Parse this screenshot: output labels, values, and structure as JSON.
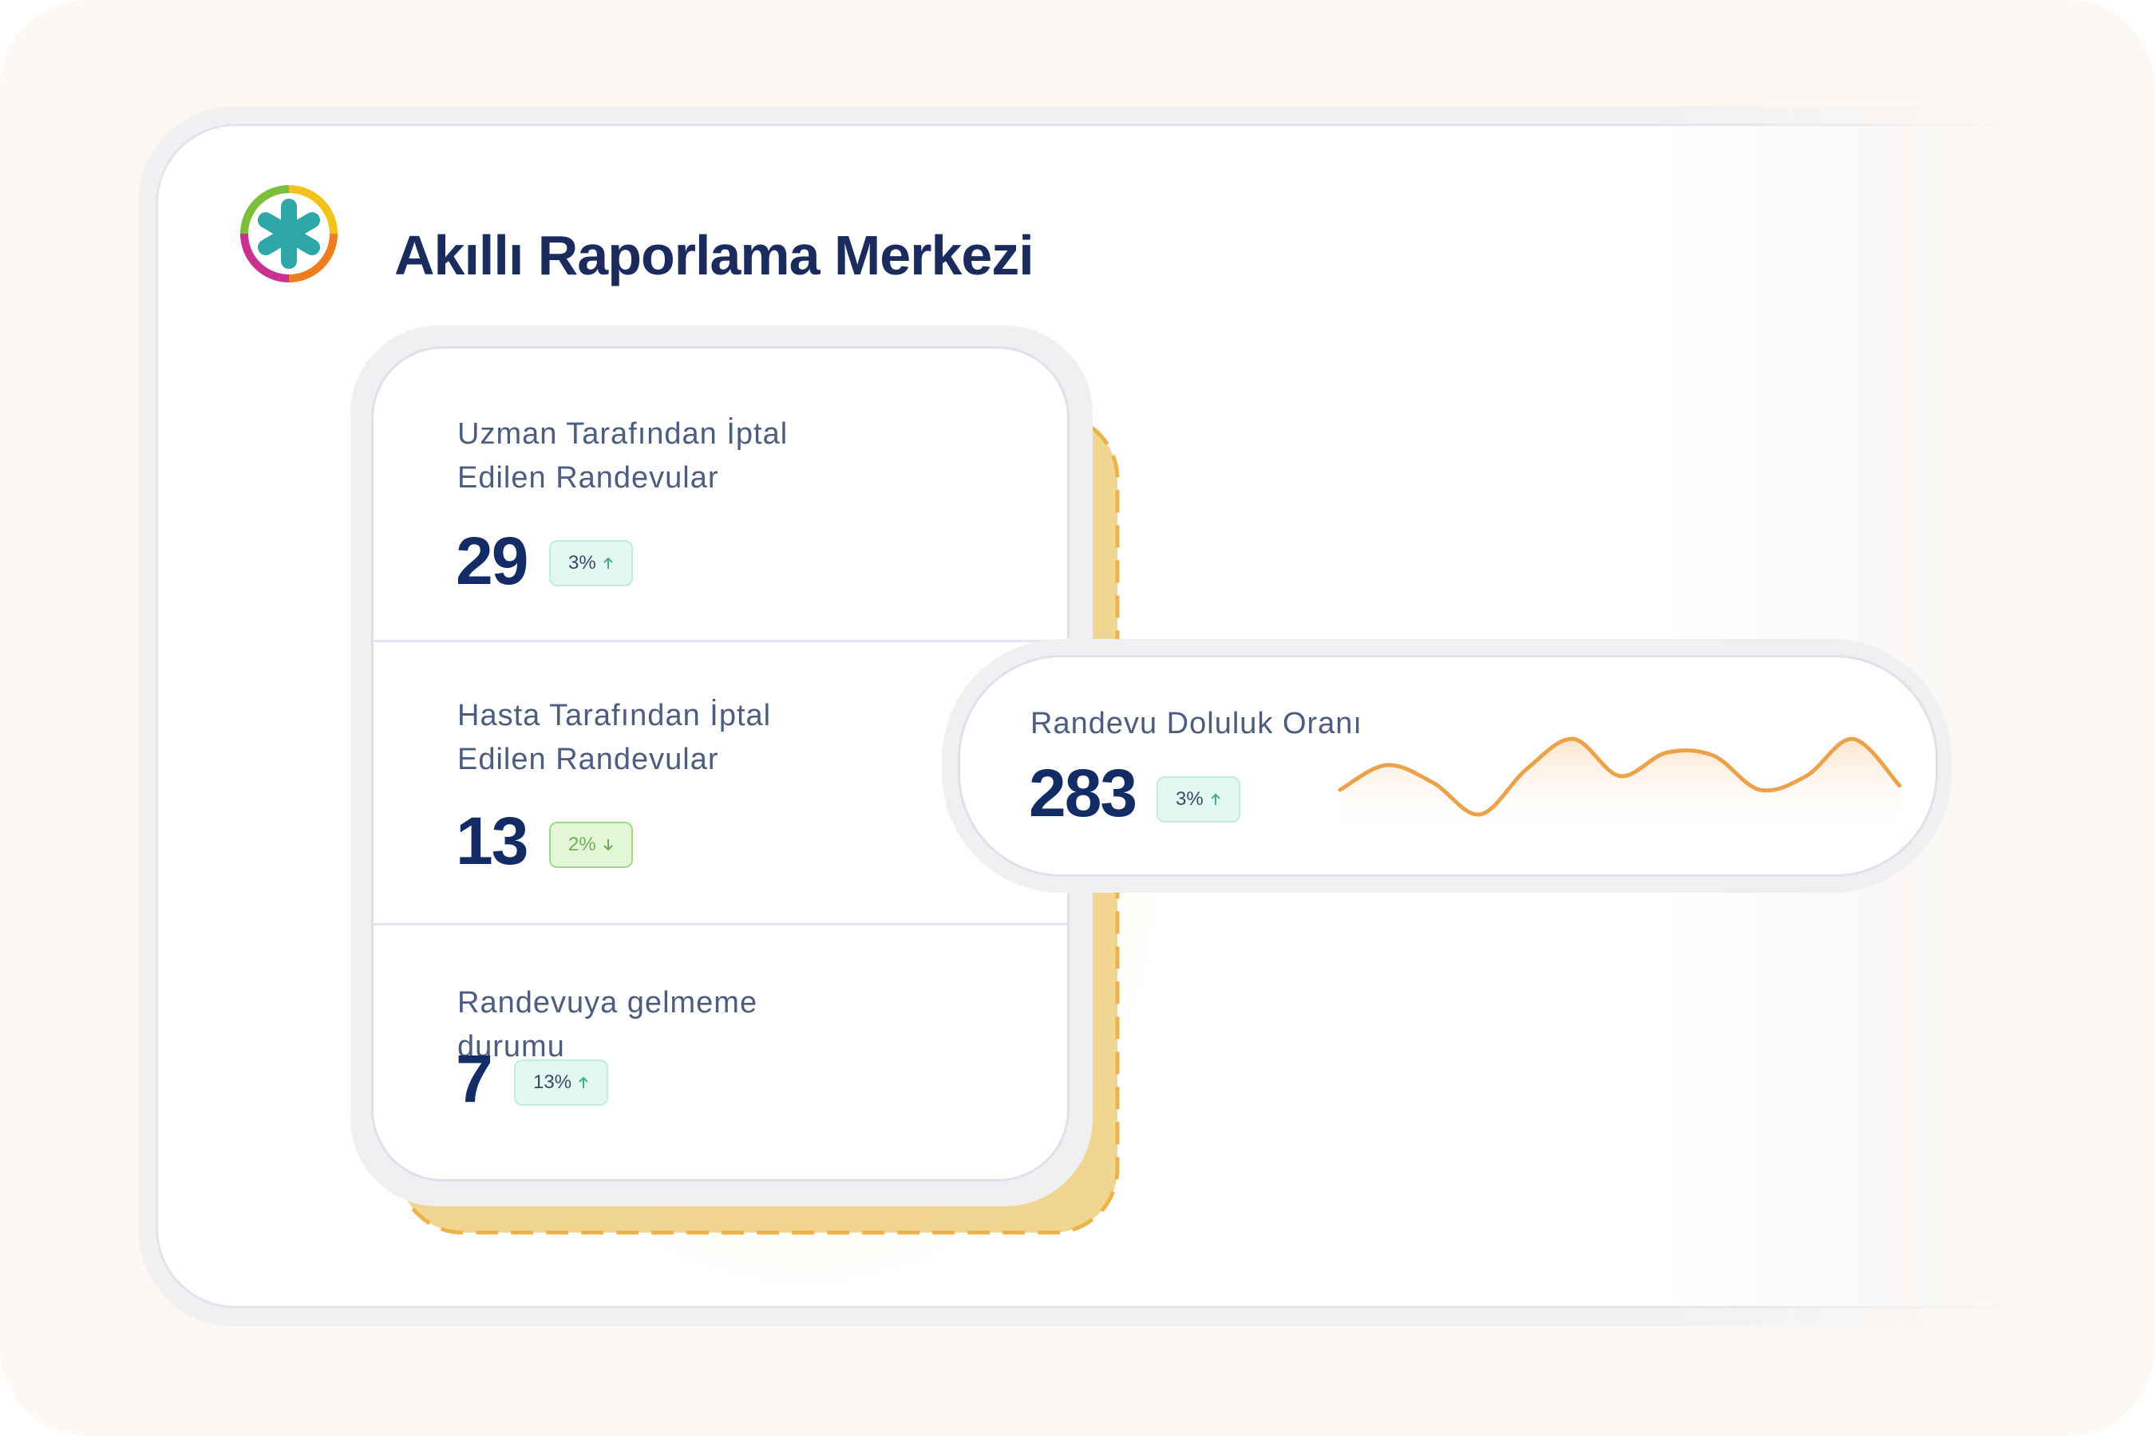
{
  "header": {
    "title": "Akıllı Raporlama Merkezi"
  },
  "stats": [
    {
      "label": "Uzman Tarafından İptal Edilen Randevular",
      "value": "29",
      "change": "3%",
      "trend": "up"
    },
    {
      "label": "Hasta Tarafından İptal Edilen Randevular",
      "value": "13",
      "change": "2%",
      "trend": "down"
    },
    {
      "label": "Randevuya gelmeme durumu",
      "value": "7",
      "change": "13%",
      "trend": "up"
    }
  ],
  "occupancy": {
    "label": "Randevu Doluluk Oranı",
    "value": "283",
    "change": "3%",
    "trend": "up",
    "sparkline": {
      "color": "#eba24a",
      "values": [
        25,
        43,
        30,
        7,
        40,
        62,
        35,
        52,
        50,
        25,
        35,
        62,
        28
      ]
    }
  }
}
